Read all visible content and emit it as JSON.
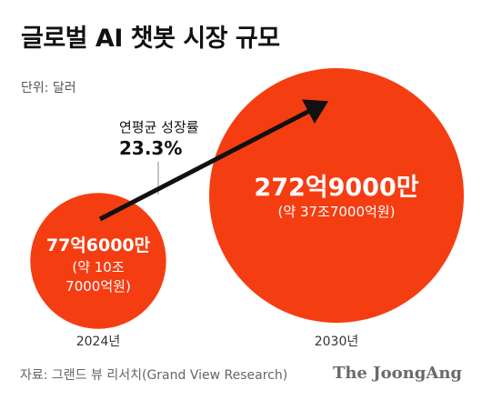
{
  "header": {
    "title": "글로벌 AI 챗봇 시장 규모",
    "unit": "단위: 달러"
  },
  "chart_data": {
    "type": "bubble",
    "title": "글로벌 AI 챗봇 시장 규모",
    "categories": [
      "2024년",
      "2030년"
    ],
    "values": [
      7760000000,
      27290000000
    ],
    "value_labels": [
      "77억6000만",
      "272억9000만"
    ],
    "krw_labels": [
      [
        "(약 10조",
        "7000억원)"
      ],
      [
        "(약 37조7000억원)"
      ]
    ],
    "growth": {
      "label": "연평균 성장률",
      "value": "23.3%"
    },
    "color": "#f53d12"
  },
  "footer": {
    "source": "자료: 그랜드 뷰 리서치(Grand View Research)",
    "logo": "The JoongAng"
  }
}
